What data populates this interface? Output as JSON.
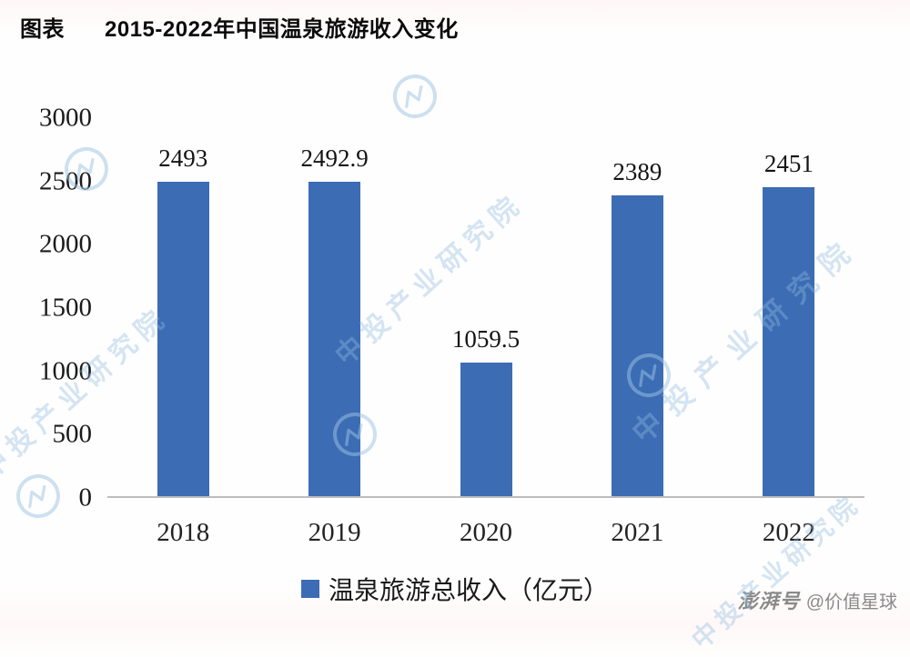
{
  "title": {
    "prefix": "图表",
    "main": "2015-2022年中国温泉旅游收入变化"
  },
  "chart_data": {
    "type": "bar",
    "title": "2015-2022年中国温泉旅游收入变化",
    "categories": [
      "2018",
      "2019",
      "2020",
      "2021",
      "2022"
    ],
    "values": [
      2493,
      2492.9,
      1059.5,
      2389,
      2451
    ],
    "value_labels": [
      "2493",
      "2492.9",
      "1059.5",
      "2389",
      "2451"
    ],
    "series_name": "温泉旅游总收入（亿元）",
    "legend": "温泉旅游总收入（亿元）",
    "legend_position": "bottom",
    "xlabel": "",
    "ylabel": "",
    "ylim": [
      0,
      3000
    ],
    "y_ticks": [
      3000,
      2500,
      2000,
      1500,
      1000,
      500,
      0
    ],
    "grid": false,
    "bar_color": "#3c6cb4"
  },
  "watermark": {
    "text": "中投产业研究院"
  },
  "footer": {
    "brand": "澎湃号",
    "handle": "@价值星球"
  }
}
